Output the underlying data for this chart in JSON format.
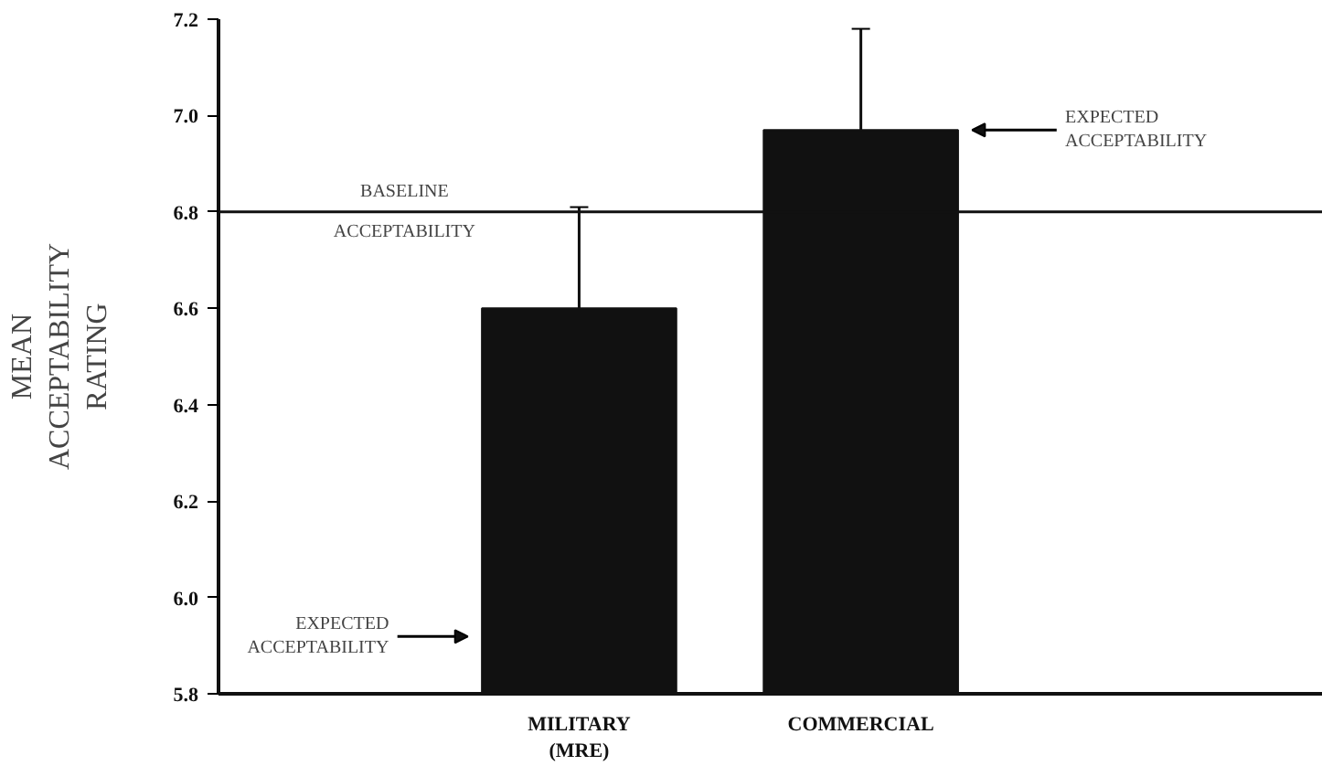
{
  "chart_data": {
    "type": "bar",
    "ylabel": "MEAN\nACCEPTABILITY\nRATING",
    "categories": [
      "MILITARY\n(MRE)",
      "COMMERCIAL"
    ],
    "values": [
      6.6,
      6.97
    ],
    "color": "#111111",
    "errors": [
      [
        6.6,
        6.81
      ],
      [
        6.97,
        7.18
      ]
    ],
    "ylim": [
      5.8,
      7.2
    ],
    "yticks": [
      5.8,
      {
        "value": 6,
        "label": "6.0"
      },
      6.2,
      6.4,
      6.6,
      6.8,
      {
        "value": 7,
        "label": "7.0"
      },
      7.2
    ],
    "ref_lines": [
      {
        "axis": "y",
        "value": 6.8,
        "label": "BASELINE\nACCEPTABILITY"
      }
    ],
    "annotations": [
      "EXPECTED\nACCEPTABILITY",
      "EXPECTED\nACCEPTABILITY"
    ],
    "grid": false
  }
}
